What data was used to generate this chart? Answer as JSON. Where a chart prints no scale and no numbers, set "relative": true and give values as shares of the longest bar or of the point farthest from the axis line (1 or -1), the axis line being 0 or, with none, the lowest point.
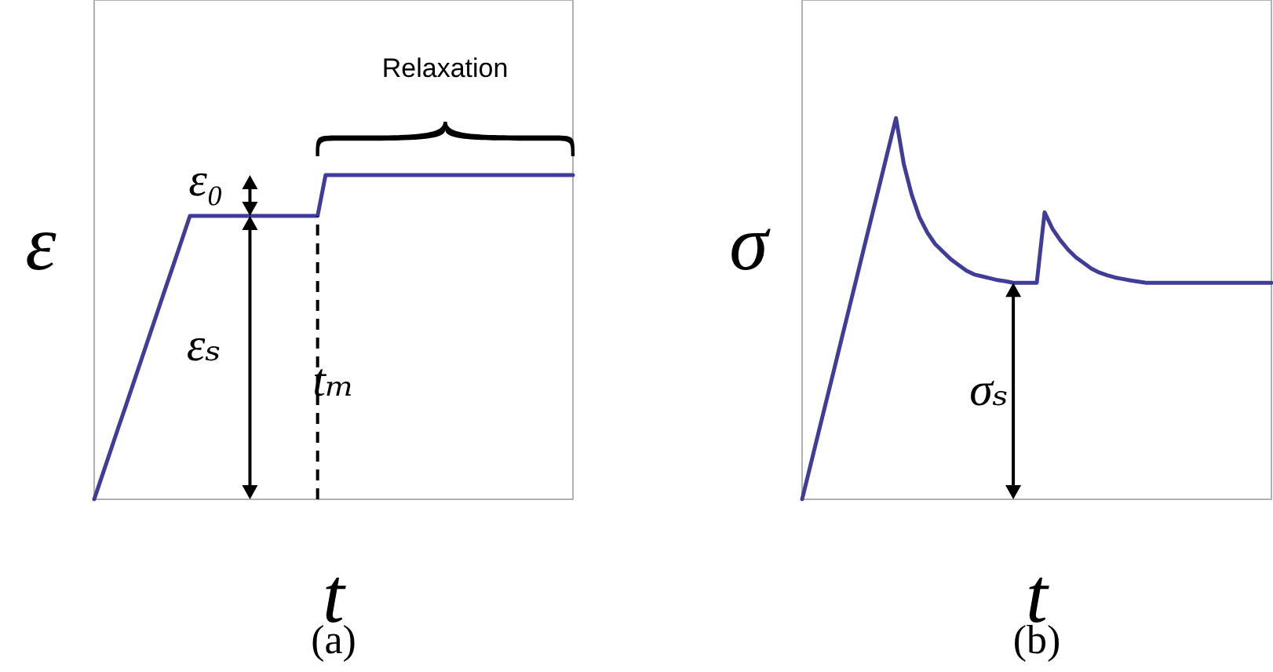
{
  "chart_data": [
    {
      "type": "line",
      "relative": true,
      "xlabel": "t",
      "ylabel": "ε",
      "tick_labels": false,
      "categories": [
        null,
        null,
        null,
        null,
        null,
        null,
        null,
        null,
        null,
        null,
        null,
        null,
        null,
        null,
        null,
        null,
        null,
        null,
        null,
        null,
        null,
        null,
        null,
        null,
        null,
        null,
        null,
        null,
        null,
        null,
        null,
        null,
        null,
        null,
        null,
        null,
        null,
        null,
        null,
        null,
        null,
        null,
        null,
        null,
        null,
        null,
        null,
        null,
        null,
        null,
        null,
        null,
        null,
        null,
        null,
        null,
        null,
        null,
        null,
        null,
        null
      ],
      "series": [
        {
          "color": "#3f3d99",
          "values": [
            0,
            0.073,
            0.146,
            0.219,
            0.291,
            0.364,
            0.437,
            0.51,
            0.583,
            0.656,
            0.728,
            0.801,
            0.874,
            0.874,
            0.874,
            0.874,
            0.874,
            0.874,
            0.874,
            0.874,
            0.874,
            0.874,
            0.874,
            0.874,
            0.874,
            0.874,
            0.874,
            0.874,
            0.874,
            1,
            1,
            1,
            1,
            1,
            1,
            1,
            1,
            1,
            1,
            1,
            1,
            1,
            1,
            1,
            1,
            1,
            1,
            1,
            1,
            1,
            1,
            1,
            1,
            1,
            1,
            1,
            1,
            1,
            1,
            1,
            1
          ]
        }
      ],
      "annotations": [
        "ε₀",
        "εₛ",
        "tₘ",
        "Relaxation",
        "(a)"
      ]
    },
    {
      "type": "line",
      "relative": true,
      "xlabel": "t",
      "ylabel": "σ",
      "tick_labels": false,
      "categories": [
        null,
        null,
        null,
        null,
        null,
        null,
        null,
        null,
        null,
        null,
        null,
        null,
        null,
        null,
        null,
        null,
        null,
        null,
        null,
        null,
        null,
        null,
        null,
        null,
        null,
        null,
        null,
        null,
        null,
        null,
        null,
        null,
        null,
        null,
        null,
        null,
        null,
        null,
        null,
        null,
        null,
        null,
        null,
        null,
        null,
        null,
        null,
        null,
        null,
        null,
        null,
        null,
        null,
        null,
        null,
        null,
        null,
        null,
        null,
        null,
        null
      ],
      "series": [
        {
          "color": "#3f3d99",
          "values": [
            0,
            0.083,
            0.167,
            0.25,
            0.333,
            0.417,
            0.5,
            0.583,
            0.667,
            0.75,
            0.833,
            0.917,
            1,
            0.88,
            0.8,
            0.74,
            0.7,
            0.67,
            0.65,
            0.63,
            0.615,
            0.6,
            0.59,
            0.585,
            0.58,
            0.575,
            0.572,
            0.568,
            0.568,
            0.568,
            0.568,
            0.753,
            0.71,
            0.68,
            0.655,
            0.635,
            0.62,
            0.605,
            0.595,
            0.588,
            0.582,
            0.578,
            0.574,
            0.571,
            0.568,
            0.568,
            0.568,
            0.568,
            0.568,
            0.568,
            0.568,
            0.568,
            0.568,
            0.568,
            0.568,
            0.568,
            0.568,
            0.568,
            0.568,
            0.568,
            0.568
          ]
        }
      ],
      "annotations": [
        "σₛ",
        "(b)"
      ]
    }
  ]
}
